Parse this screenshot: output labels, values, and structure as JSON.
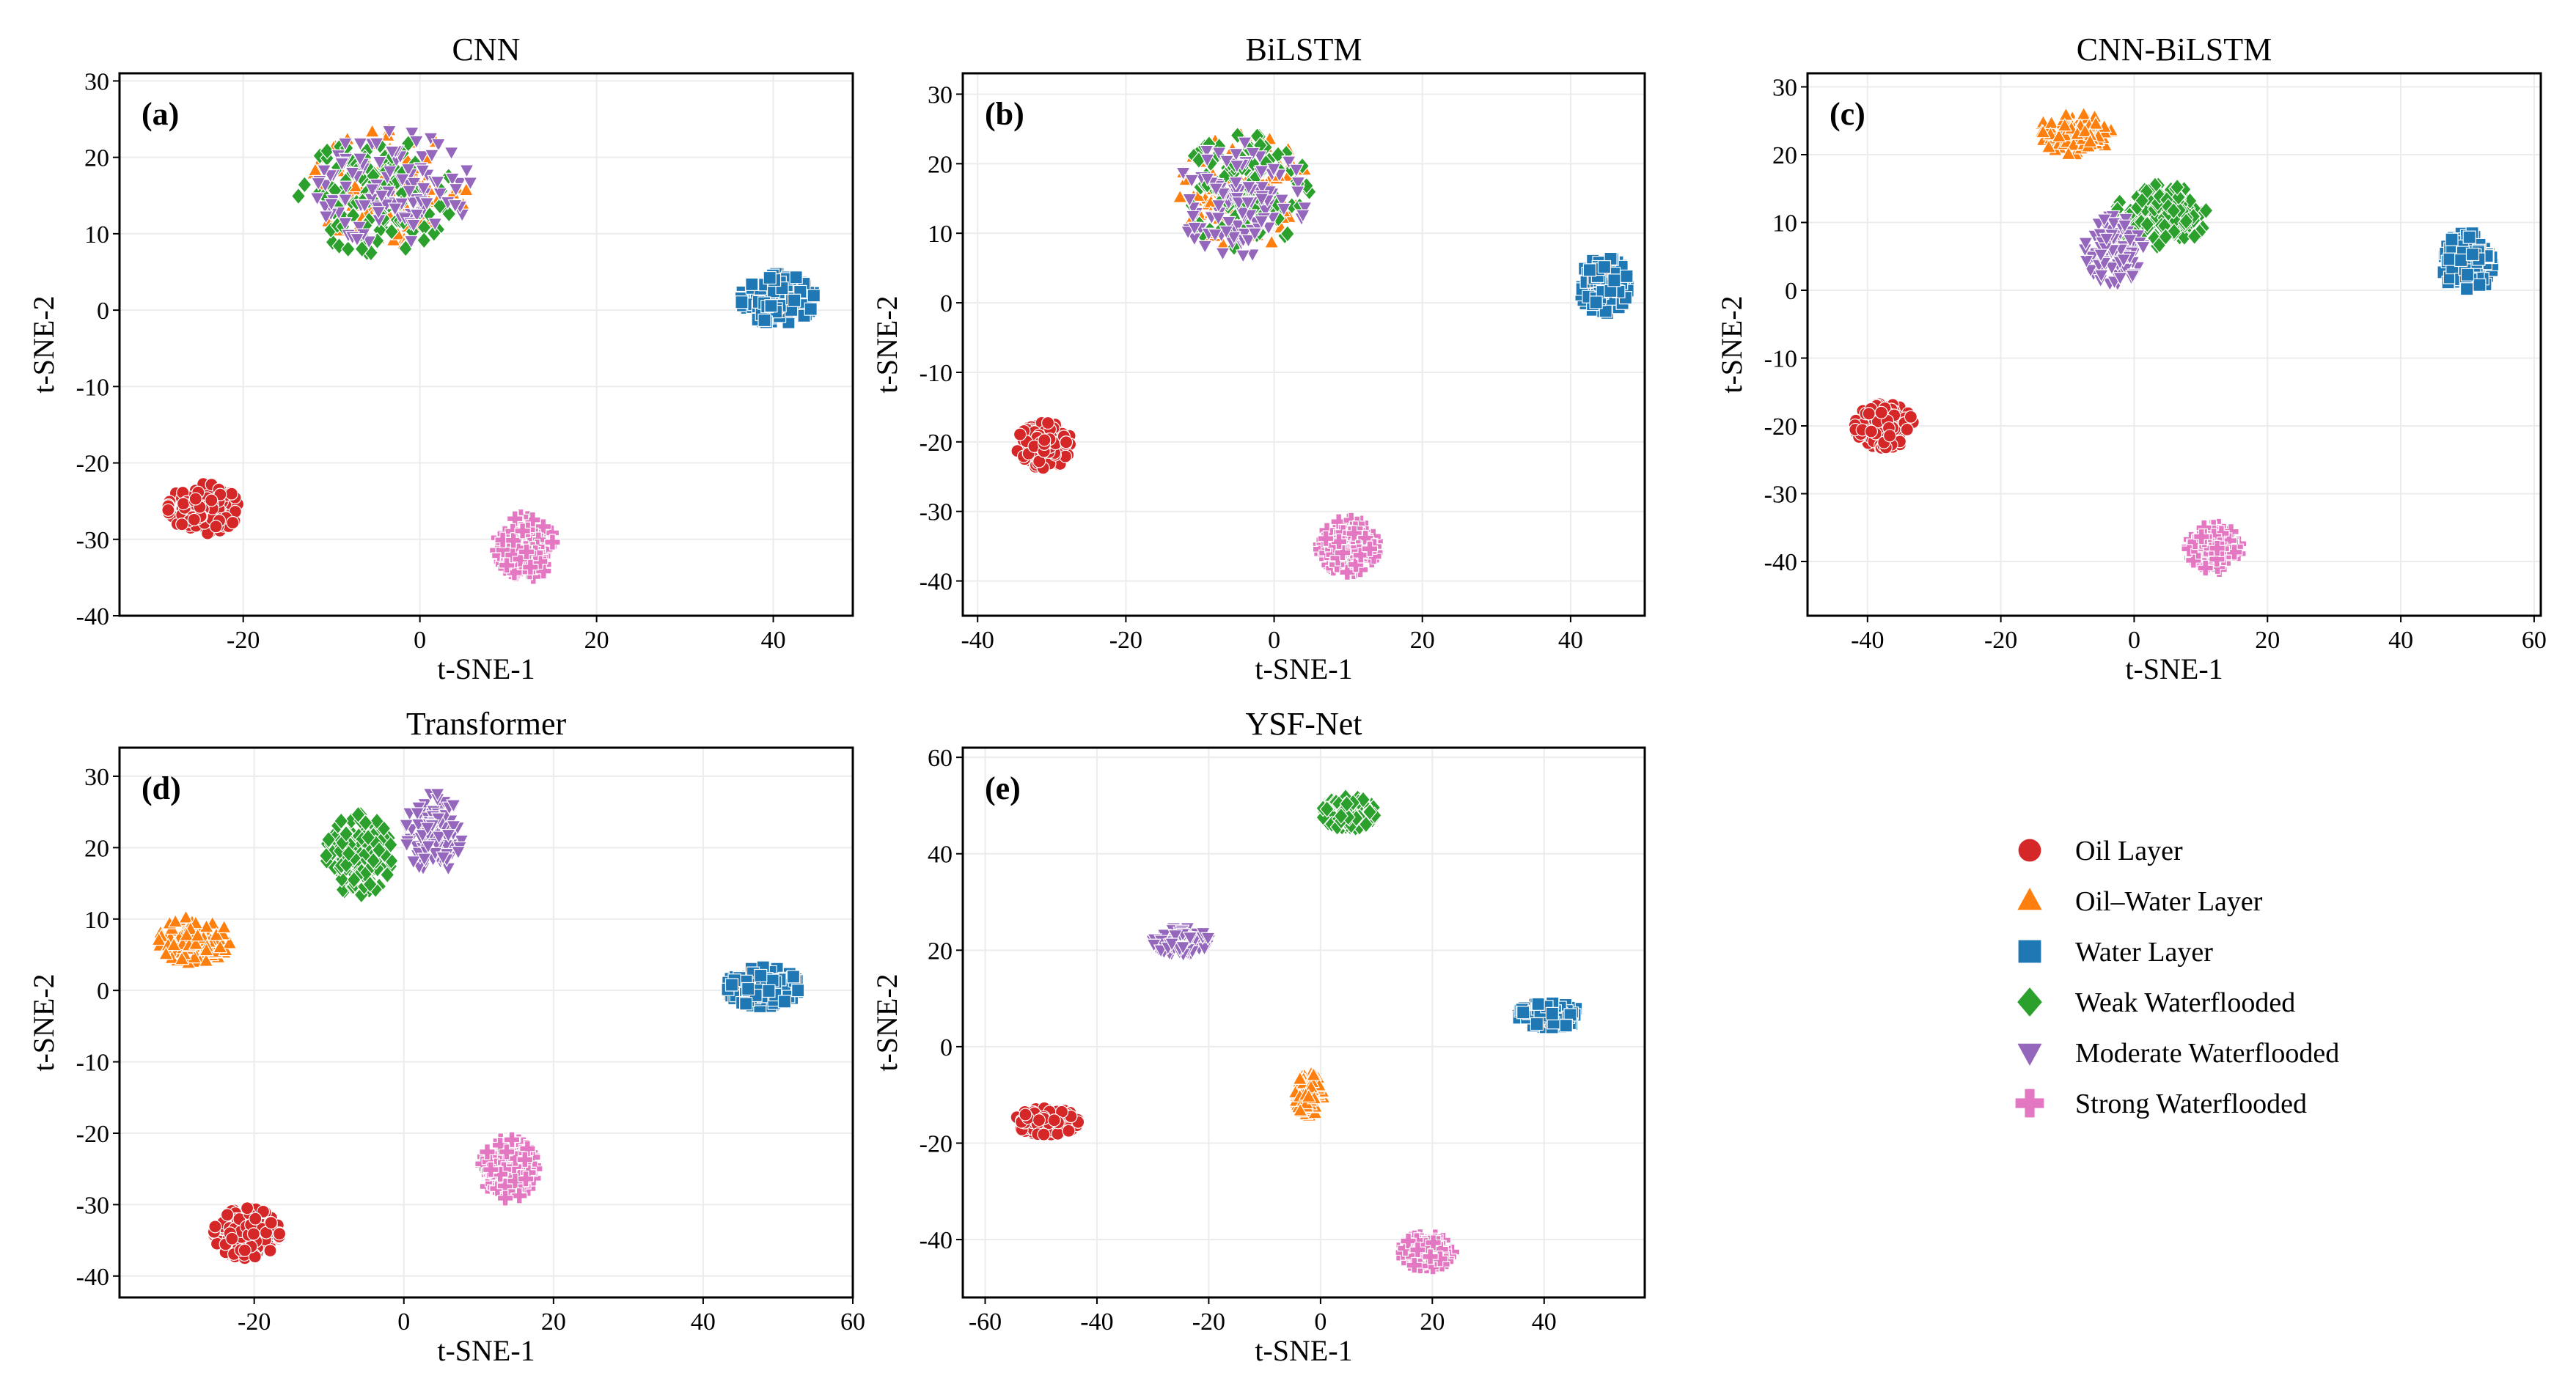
{
  "chart_data": {
    "type": "scatter",
    "marker_color": "#ffffff",
    "legend": {
      "placement": "right",
      "entries": [
        {
          "name": "Oil Layer",
          "color": "#d62728",
          "marker": "circle"
        },
        {
          "name": "Oil–Water Layer",
          "color": "#ff7f0e",
          "marker": "triangle-up"
        },
        {
          "name": "Water Layer",
          "color": "#1f77b4",
          "marker": "square"
        },
        {
          "name": "Weak Waterflooded",
          "color": "#2ca02c",
          "marker": "diamond"
        },
        {
          "name": "Moderate Waterflooded",
          "color": "#9467bd",
          "marker": "triangle-down"
        },
        {
          "name": "Strong Waterflooded",
          "color": "#e377c2",
          "marker": "plus"
        }
      ]
    },
    "panels": [
      {
        "id": "a",
        "label": "(a)",
        "title": "CNN",
        "xlabel": "t-SNE-1",
        "ylabel": "t-SNE-2",
        "xlim": [
          -34,
          49
        ],
        "ylim": [
          -40,
          31
        ],
        "xticks": [
          -20,
          0,
          20,
          40
        ],
        "yticks": [
          -40,
          -30,
          -20,
          -10,
          0,
          10,
          20,
          30
        ],
        "clusters": [
          {
            "class": 0,
            "center": [
              -24.5,
              -26
            ],
            "spread": [
              3.2,
              2.6
            ],
            "n": 140
          },
          {
            "class": 2,
            "center": [
              40.5,
              1.5
            ],
            "spread": [
              3.3,
              2.6
            ],
            "n": 150
          },
          {
            "class": 5,
            "center": [
              12,
              -31
            ],
            "spread": [
              2.6,
              3.2
            ],
            "n": 120
          },
          {
            "class": 1,
            "center": [
              -3.5,
              16
            ],
            "spread": [
              7,
              6
            ],
            "n": 110
          },
          {
            "class": 3,
            "center": [
              -5,
              15
            ],
            "spread": [
              7,
              6
            ],
            "n": 110
          },
          {
            "class": 4,
            "center": [
              -3,
              16
            ],
            "spread": [
              7,
              6
            ],
            "n": 110
          }
        ]
      },
      {
        "id": "b",
        "label": "(b)",
        "title": "BiLSTM",
        "xlabel": "t-SNE-1",
        "ylabel": "t-SNE-2",
        "xlim": [
          -42,
          50
        ],
        "ylim": [
          -45,
          33
        ],
        "xticks": [
          -40,
          -20,
          0,
          20,
          40
        ],
        "yticks": [
          -40,
          -30,
          -20,
          -10,
          0,
          10,
          20,
          30
        ],
        "clusters": [
          {
            "class": 0,
            "center": [
              -31,
              -20.5
            ],
            "spread": [
              3,
              2.6
            ],
            "n": 140
          },
          {
            "class": 2,
            "center": [
              44.5,
              2.5
            ],
            "spread": [
              2.6,
              3.2
            ],
            "n": 150
          },
          {
            "class": 5,
            "center": [
              10,
              -35
            ],
            "spread": [
              3,
              3
            ],
            "n": 120
          },
          {
            "class": 1,
            "center": [
              -4,
              16
            ],
            "spread": [
              7,
              6.5
            ],
            "n": 110
          },
          {
            "class": 3,
            "center": [
              -4,
              16
            ],
            "spread": [
              7,
              6.5
            ],
            "n": 110
          },
          {
            "class": 4,
            "center": [
              -4.5,
              15
            ],
            "spread": [
              7,
              6.5
            ],
            "n": 110
          }
        ]
      },
      {
        "id": "c",
        "label": "(c)",
        "title": "CNN-BiLSTM",
        "xlabel": "t-SNE-1",
        "ylabel": "t-SNE-2",
        "xlim": [
          -49,
          61
        ],
        "ylim": [
          -48,
          32
        ],
        "xticks": [
          -40,
          -20,
          0,
          20,
          40,
          60
        ],
        "yticks": [
          -40,
          -30,
          -20,
          -10,
          0,
          10,
          20,
          30
        ],
        "clusters": [
          {
            "class": 0,
            "center": [
              -37.5,
              -20
            ],
            "spread": [
              3.5,
              2.6
            ],
            "n": 140
          },
          {
            "class": 1,
            "center": [
              -9,
              23
            ],
            "spread": [
              4.5,
              2.4
            ],
            "n": 120
          },
          {
            "class": 2,
            "center": [
              50,
              4
            ],
            "spread": [
              3,
              3.6
            ],
            "n": 150
          },
          {
            "class": 3,
            "center": [
              4,
              11
            ],
            "spread": [
              5.5,
              3.6
            ],
            "n": 150
          },
          {
            "class": 4,
            "center": [
              -3,
              6
            ],
            "spread": [
              3.5,
              4
            ],
            "n": 110
          },
          {
            "class": 5,
            "center": [
              12,
              -38
            ],
            "spread": [
              3,
              2.6
            ],
            "n": 120
          }
        ]
      },
      {
        "id": "d",
        "label": "(d)",
        "title": "Transformer",
        "xlabel": "t-SNE-1",
        "ylabel": "t-SNE-2",
        "xlim": [
          -38,
          60
        ],
        "ylim": [
          -43,
          34
        ],
        "xticks": [
          -20,
          0,
          20,
          40,
          60
        ],
        "yticks": [
          -40,
          -30,
          -20,
          -10,
          0,
          10,
          20,
          30
        ],
        "clusters": [
          {
            "class": 0,
            "center": [
              -21,
              -34
            ],
            "spread": [
              3.5,
              2.8
            ],
            "n": 150
          },
          {
            "class": 1,
            "center": [
              -28,
              7
            ],
            "spread": [
              3.8,
              2.6
            ],
            "n": 120
          },
          {
            "class": 2,
            "center": [
              48,
              0.5
            ],
            "spread": [
              3.8,
              2.2
            ],
            "n": 160
          },
          {
            "class": 3,
            "center": [
              -6,
              19
            ],
            "spread": [
              3.5,
              4.5
            ],
            "n": 150
          },
          {
            "class": 4,
            "center": [
              4,
              22
            ],
            "spread": [
              3,
              4.5
            ],
            "n": 110
          },
          {
            "class": 5,
            "center": [
              14,
              -25
            ],
            "spread": [
              2.8,
              3.3
            ],
            "n": 130
          }
        ]
      },
      {
        "id": "e",
        "label": "(e)",
        "title": "YSF-Net",
        "xlabel": "t-SNE-1",
        "ylabel": "t-SNE-2",
        "xlim": [
          -64,
          58
        ],
        "ylim": [
          -52,
          62
        ],
        "xticks": [
          -60,
          -40,
          -20,
          0,
          20,
          40
        ],
        "yticks": [
          -40,
          -20,
          0,
          20,
          40,
          60
        ],
        "clusters": [
          {
            "class": 0,
            "center": [
              -49,
              -15.5
            ],
            "spread": [
              4.5,
              2.2
            ],
            "n": 140
          },
          {
            "class": 1,
            "center": [
              -2,
              -10
            ],
            "spread": [
              2,
              3.5
            ],
            "n": 110
          },
          {
            "class": 2,
            "center": [
              41,
              6.5
            ],
            "spread": [
              4.5,
              2
            ],
            "n": 150
          },
          {
            "class": 3,
            "center": [
              5,
              48.5
            ],
            "spread": [
              3.8,
              2.6
            ],
            "n": 140
          },
          {
            "class": 4,
            "center": [
              -25,
              22
            ],
            "spread": [
              4,
              2.2
            ],
            "n": 120
          },
          {
            "class": 5,
            "center": [
              19,
              -42.5
            ],
            "spread": [
              3.6,
              2.6
            ],
            "n": 120
          }
        ]
      }
    ]
  }
}
